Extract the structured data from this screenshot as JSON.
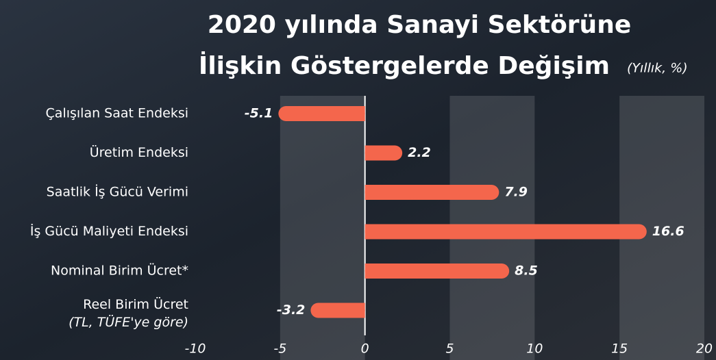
{
  "chart_data": {
    "type": "hbar",
    "title": [
      "2020 yılında Sanayi Sektörüne",
      "İlişkin Göstergelerde Değişim"
    ],
    "subtitle": "(Yıllık, %)",
    "categories": [
      "Çalışılan Saat Endeksi",
      "Üretim Endeksi",
      "Saatlik İş Gücü Verimi",
      "İş Gücü Maliyeti Endeksi",
      "Nominal Birim Ücret*",
      "Reel Birim Ücret"
    ],
    "category_note": "(TL, TÜFE'ye göre)",
    "values": [
      -5.1,
      2.2,
      7.9,
      16.6,
      8.5,
      -3.2
    ],
    "color": "#f4664c",
    "xlim": [
      -10,
      20
    ],
    "xticks": [
      -10,
      -5,
      0,
      5,
      10,
      15,
      20
    ],
    "grid": true
  }
}
